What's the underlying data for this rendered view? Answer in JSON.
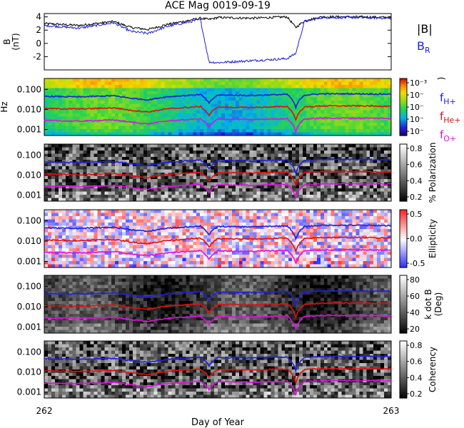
{
  "title": "ACE Mag 0019-09-19",
  "xlabel": "Day of Year",
  "x_ticks": [
    "262",
    "263"
  ],
  "colors": {
    "b_total": "#000000",
    "b_r": "#1f1fe0",
    "f_h": "#1f1fe0",
    "f_he": "#e01010",
    "f_o": "#e010e0"
  },
  "legend_top": {
    "b_total": "|B|",
    "b_r": "B",
    "b_r_sub": "R"
  },
  "legend_freq": [
    {
      "base": "f",
      "sub": "H+",
      "color": "#1f1fe0"
    },
    {
      "base": "f",
      "sub": "He+",
      "color": "#e01010"
    },
    {
      "base": "f",
      "sub": "O+",
      "color": "#e010e0"
    }
  ],
  "chart_data": [
    {
      "type": "line",
      "panel": "magnetic-field",
      "ylabel_lines": [
        "B",
        "(nT)"
      ],
      "ylim": [
        -4,
        4.5
      ],
      "y_ticks": [
        "4",
        "2",
        "0",
        "-2"
      ],
      "x": [
        262.0,
        262.1,
        262.2,
        262.25,
        262.3,
        262.35,
        262.45,
        262.475,
        262.5,
        262.6,
        262.7,
        262.725,
        262.75,
        262.8,
        262.9,
        263.0
      ],
      "series": [
        {
          "name": "|B|",
          "values": [
            3.0,
            2.7,
            3.3,
            2.4,
            2.1,
            2.8,
            3.8,
            3.6,
            3.9,
            3.8,
            4.0,
            2.4,
            3.4,
            4.0,
            4.0,
            3.9
          ]
        },
        {
          "name": "BR",
          "values": [
            2.7,
            2.3,
            3.1,
            1.8,
            1.5,
            2.5,
            3.6,
            -2.8,
            -2.9,
            -2.6,
            -2.3,
            -1.5,
            3.3,
            3.9,
            3.9,
            3.8
          ]
        }
      ]
    },
    {
      "type": "heatmap",
      "panel": "power-spectrum",
      "ylabel": "Hz",
      "y_scale": "log",
      "y_ticks": [
        "0.100",
        "0.010",
        "0.001"
      ],
      "colorbar_ticks": [
        "10⁻³",
        "10⁻",
        "10⁻",
        "10⁻",
        "10⁻"
      ],
      "colorbar_title": ")",
      "colormap": "rainbow"
    },
    {
      "type": "heatmap",
      "panel": "polarization",
      "y_scale": "log",
      "y_ticks": [
        "0.100",
        "0.010",
        "0.001"
      ],
      "colorbar_ticks": [
        "0.8",
        "0.6",
        "0.4",
        "0.2"
      ],
      "colorbar_title": "% Polarization",
      "colormap": "gray"
    },
    {
      "type": "heatmap",
      "panel": "ellipticity",
      "y_scale": "log",
      "y_ticks": [
        "0.100",
        "0.010",
        "0.001"
      ],
      "colorbar_ticks": [
        "0.5",
        "0.0",
        "-0.5"
      ],
      "colorbar_title": "Ellipticity",
      "colormap": "bwr"
    },
    {
      "type": "heatmap",
      "panel": "k-dot-b",
      "y_scale": "log",
      "y_ticks": [
        "0.100",
        "0.010",
        "0.001"
      ],
      "colorbar_ticks": [
        "80",
        "60",
        "40",
        "20"
      ],
      "colorbar_title_lines": [
        "k dot B",
        "(Deg)"
      ],
      "colormap": "gray"
    },
    {
      "type": "heatmap",
      "panel": "coherency",
      "y_scale": "log",
      "y_ticks": [
        "0.100",
        "0.010",
        "0.001"
      ],
      "colorbar_ticks": [
        "0.8",
        "0.6",
        "0.4",
        "0.2"
      ],
      "colorbar_title": "Coherency",
      "colormap": "gray"
    }
  ],
  "gyro_lines": {
    "x": [
      262.0,
      262.1,
      262.2,
      262.25,
      262.3,
      262.35,
      262.45,
      262.475,
      262.5,
      262.6,
      262.7,
      262.725,
      262.75,
      262.8,
      262.9,
      263.0
    ],
    "f_h": [
      0.045,
      0.042,
      0.048,
      0.036,
      0.03,
      0.042,
      0.055,
      0.02,
      0.052,
      0.05,
      0.056,
      0.012,
      0.052,
      0.06,
      0.06,
      0.058
    ],
    "f_he": [
      0.0112,
      0.0105,
      0.012,
      0.009,
      0.0075,
      0.0105,
      0.0138,
      0.005,
      0.013,
      0.0125,
      0.014,
      0.003,
      0.013,
      0.015,
      0.015,
      0.0145
    ],
    "f_o": [
      0.0028,
      0.0026,
      0.003,
      0.0023,
      0.0019,
      0.0026,
      0.0034,
      0.0013,
      0.0033,
      0.0031,
      0.0035,
      0.0008,
      0.0033,
      0.0037,
      0.0037,
      0.0036
    ]
  }
}
